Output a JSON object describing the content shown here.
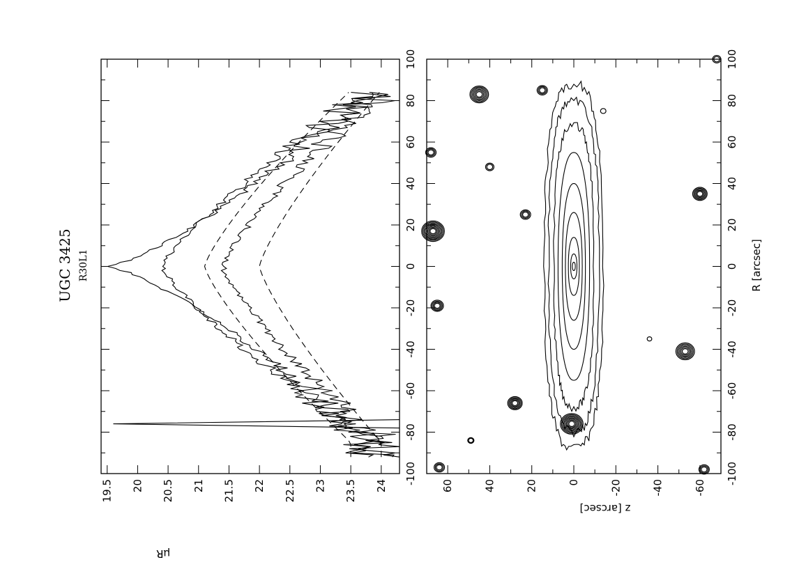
{
  "figure": {
    "title": "UGC 3425",
    "subtitle": "R30L1"
  },
  "chart_data": [
    {
      "type": "line",
      "name": "surface-brightness-profiles",
      "xlabel": "",
      "ylabel": "μR",
      "xlim": [
        -100,
        100
      ],
      "ylim": [
        24.3,
        19.4
      ],
      "x_ticks": [
        "-100",
        "-80",
        "-60",
        "-40",
        "-20",
        "0",
        "20",
        "40",
        "60",
        "80",
        "100"
      ],
      "y_ticks": [
        "19.5",
        "20",
        "20.5",
        "21",
        "21.5",
        "22",
        "22.5",
        "23",
        "23.5",
        "24"
      ],
      "series_peaks": [
        {
          "style": "solid",
          "peak_mu": 19.5,
          "edge_mu": 23.8
        },
        {
          "style": "solid",
          "peak_mu": 20.4,
          "edge_mu": 23.9
        },
        {
          "style": "solid",
          "peak_mu": 21.4,
          "edge_mu": 24.0
        },
        {
          "style": "dashed",
          "peak_mu": 21.1,
          "edge_mu": 23.5
        },
        {
          "style": "dashed",
          "peak_mu": 22.0,
          "edge_mu": 24.0
        }
      ],
      "grid": false
    },
    {
      "type": "contour",
      "name": "isophote-map",
      "xlabel": "R [arcsec]",
      "ylabel": "z [arcsec]",
      "xlim": [
        -100,
        100
      ],
      "ylim": [
        -70,
        70
      ],
      "x_ticks": [
        "-100",
        "-80",
        "-60",
        "-40",
        "-20",
        "0",
        "20",
        "40",
        "60",
        "80",
        "100"
      ],
      "y_ticks": [
        "60",
        "40",
        "20",
        "0",
        "-20",
        "-40",
        "-60"
      ],
      "galaxy": {
        "center_R": 0,
        "center_z": 0
      },
      "contour_half_extents": [
        {
          "R": 88,
          "z": 14
        },
        {
          "R": 80,
          "z": 12
        },
        {
          "R": 68,
          "z": 9.5
        },
        {
          "R": 55,
          "z": 7.5
        },
        {
          "R": 40,
          "z": 5.5
        },
        {
          "R": 26,
          "z": 4
        },
        {
          "R": 14,
          "z": 2.6
        },
        {
          "R": 6,
          "z": 1.5
        },
        {
          "R": 2,
          "z": 0.7
        }
      ],
      "stars": [
        {
          "R": 83,
          "z": 45,
          "size": 4
        },
        {
          "R": 85,
          "z": 15,
          "size": 2
        },
        {
          "R": 48,
          "z": 40,
          "size": 1.5
        },
        {
          "R": 55,
          "z": 68,
          "size": 2
        },
        {
          "R": 17,
          "z": 67,
          "size": 5
        },
        {
          "R": 25,
          "z": 23,
          "size": 2
        },
        {
          "R": -19,
          "z": 65,
          "size": 2.5
        },
        {
          "R": -66,
          "z": 28,
          "size": 3
        },
        {
          "R": -76,
          "z": 1,
          "size": 5
        },
        {
          "R": -84,
          "z": 49,
          "size": 1
        },
        {
          "R": -97,
          "z": 64,
          "size": 2
        },
        {
          "R": 35,
          "z": -60,
          "size": 3
        },
        {
          "R": -41,
          "z": -53,
          "size": 4
        },
        {
          "R": 75,
          "z": -14,
          "size": 0.8
        },
        {
          "R": -35,
          "z": -36,
          "size": 0.6
        },
        {
          "R": 100,
          "z": -68,
          "size": 1.5
        },
        {
          "R": -98,
          "z": -62,
          "size": 2
        }
      ]
    }
  ]
}
